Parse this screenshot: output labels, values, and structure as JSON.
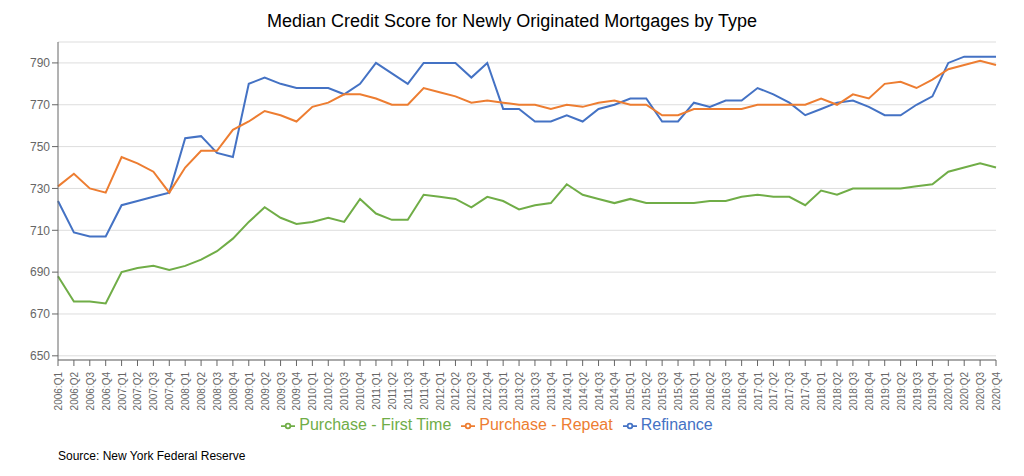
{
  "chart_data": {
    "type": "line",
    "title": "Median Credit Score for Newly Originated Mortgages by Type",
    "annotations": [
      "Source: New York Federal Reserve"
    ],
    "categories": [
      "2006:Q1",
      "2006:Q2",
      "2006:Q3",
      "2006:Q4",
      "2007:Q1",
      "2007:Q2",
      "2007:Q3",
      "2007:Q4",
      "2008:Q1",
      "2008:Q2",
      "2008:Q3",
      "2008:Q4",
      "2009:Q1",
      "2009:Q2",
      "2009:Q3",
      "2009:Q4",
      "2010:Q1",
      "2010:Q2",
      "2010:Q3",
      "2010:Q4",
      "2011:Q1",
      "2011:Q2",
      "2011:Q3",
      "2011:Q4",
      "2012:Q1",
      "2012:Q2",
      "2012:Q3",
      "2012:Q4",
      "2013:Q1",
      "2013:Q2",
      "2013:Q3",
      "2013:Q4",
      "2014:Q1",
      "2014:Q2",
      "2014:Q3",
      "2014:Q4",
      "2015:Q1",
      "2015:Q2",
      "2015:Q3",
      "2015:Q4",
      "2016:Q1",
      "2016:Q2",
      "2016:Q3",
      "2016:Q4",
      "2017:Q1",
      "2017:Q2",
      "2017:Q3",
      "2017:Q4",
      "2018:Q1",
      "2018:Q2",
      "2018:Q3",
      "2018:Q4",
      "2019:Q1",
      "2019:Q2",
      "2019:Q3",
      "2019:Q4",
      "2020:Q1",
      "2020:Q2",
      "2020:Q3",
      "2020:Q4"
    ],
    "series": [
      {
        "name": "Refinance",
        "color": "#4472C4",
        "values": [
          724,
          709,
          707,
          707,
          722,
          724,
          726,
          728,
          754,
          755,
          747,
          745,
          780,
          783,
          780,
          778,
          778,
          778,
          775,
          780,
          790,
          785,
          780,
          790,
          790,
          790,
          783,
          790,
          768,
          768,
          762,
          762,
          765,
          762,
          768,
          770,
          773,
          773,
          762,
          762,
          771,
          769,
          772,
          772,
          778,
          775,
          771,
          765,
          768,
          771,
          772,
          769,
          765,
          765,
          770,
          774,
          790,
          793,
          793,
          793
        ]
      },
      {
        "name": "Purchase - Repeat",
        "color": "#ED7D31",
        "values": [
          731,
          737,
          730,
          728,
          745,
          742,
          738,
          728,
          740,
          748,
          748,
          758,
          762,
          767,
          765,
          762,
          769,
          771,
          775,
          775,
          773,
          770,
          770,
          778,
          776,
          774,
          771,
          772,
          771,
          770,
          770,
          768,
          770,
          769,
          771,
          772,
          770,
          770,
          765,
          765,
          768,
          768,
          768,
          768,
          770,
          770,
          770,
          770,
          773,
          770,
          775,
          773,
          780,
          781,
          778,
          782,
          787,
          789,
          791,
          789
        ]
      },
      {
        "name": "Purchase - First Time",
        "color": "#70AD47",
        "values": [
          688,
          676,
          676,
          675,
          690,
          692,
          693,
          691,
          693,
          696,
          700,
          706,
          714,
          721,
          716,
          713,
          714,
          716,
          714,
          725,
          718,
          715,
          715,
          727,
          726,
          725,
          721,
          726,
          724,
          720,
          722,
          723,
          732,
          727,
          725,
          723,
          725,
          723,
          723,
          723,
          723,
          724,
          724,
          726,
          727,
          726,
          726,
          722,
          729,
          727,
          730,
          730,
          730,
          730,
          731,
          732,
          738,
          740,
          742,
          740
        ]
      }
    ],
    "ylim": [
      648,
      800
    ],
    "yticks": [
      650,
      670,
      690,
      710,
      730,
      750,
      770,
      790
    ],
    "grid": true,
    "legend": "bottom"
  }
}
